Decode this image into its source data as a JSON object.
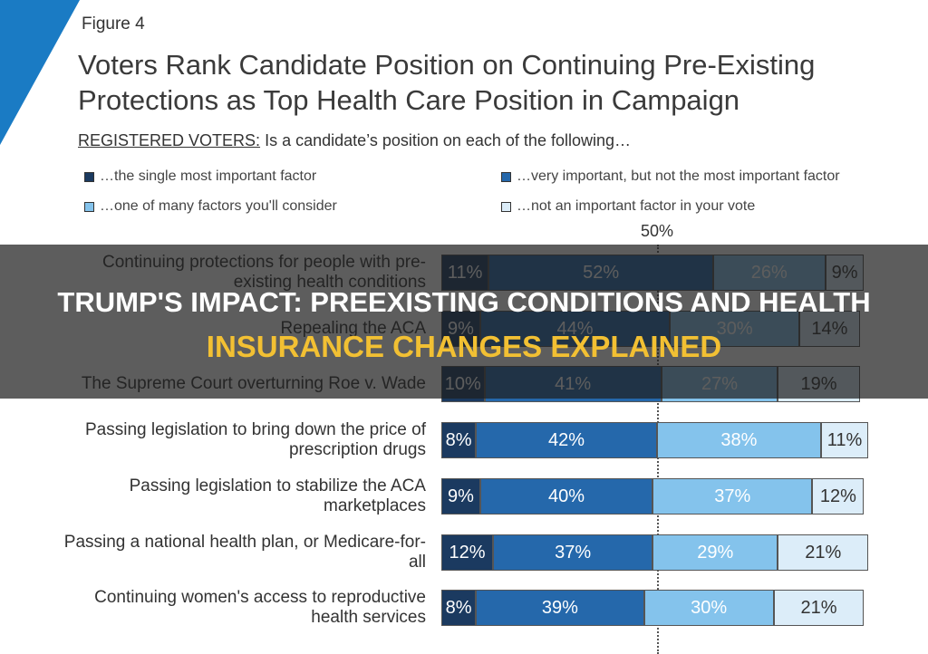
{
  "chart_data": {
    "type": "stacked-bar-horizontal",
    "figure_label": "Figure 4",
    "title": "Voters Rank Candidate Position on Continuing Pre-Existing Protections as Top Health Care Position in Campaign",
    "subtitle_label": "REGISTERED VOTERS:",
    "subtitle": "Is a candidate’s position on each of the following…",
    "categories": [
      "Continuing protections for people with pre-existing health conditions",
      "Repealing the ACA",
      "The Supreme Court overturning Roe v. Wade",
      "Passing legislation to bring down the price of prescription drugs",
      "Passing legislation to stabilize the ACA marketplaces",
      "Passing a national health plan, or Medicare-for-all",
      "Continuing women's access to reproductive health services"
    ],
    "series": [
      {
        "name": "…the single most important factor",
        "color": "#1b3a60",
        "values": [
          11,
          9,
          10,
          8,
          9,
          12,
          8
        ],
        "value_labels": [
          "11%",
          "9%",
          "10%",
          "8%",
          "9%",
          "12%",
          "8%"
        ]
      },
      {
        "name": "…very important, but not the most important factor",
        "color": "#2568ab",
        "values": [
          52,
          44,
          41,
          42,
          40,
          37,
          39
        ],
        "value_labels": [
          "52%",
          "44%",
          "41%",
          "42%",
          "40%",
          "37%",
          "39%"
        ]
      },
      {
        "name": "…one of many factors you'll consider",
        "color": "#84c3ec",
        "values": [
          26,
          30,
          27,
          38,
          37,
          29,
          30
        ],
        "value_labels": [
          "26%",
          "30%",
          "27%",
          "38%",
          "37%",
          "29%",
          "30%"
        ]
      },
      {
        "name": "…not an important factor in your vote",
        "color": "#dcedf9",
        "values": [
          9,
          14,
          19,
          11,
          12,
          21,
          21
        ],
        "value_labels": [
          "9%",
          "14%",
          "19%",
          "11%",
          "12%",
          "21%",
          "21%"
        ]
      }
    ],
    "xlim": [
      0,
      100
    ],
    "reference_line": {
      "value": 50,
      "label": "50%"
    }
  },
  "overlay": {
    "title_line1": "TRUMP'S IMPACT: PREEXISTING CONDITIONS AND HEALTH",
    "title_line2": "INSURANCE CHANGES EXPLAINED"
  }
}
